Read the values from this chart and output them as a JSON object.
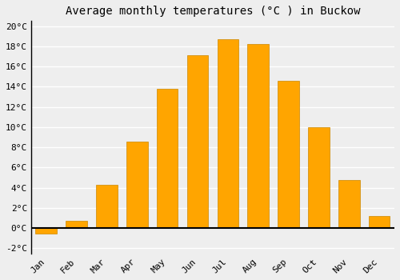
{
  "title": "Average monthly temperatures (°C ) in Buckow",
  "months": [
    "Jan",
    "Feb",
    "Mar",
    "Apr",
    "May",
    "Jun",
    "Jul",
    "Aug",
    "Sep",
    "Oct",
    "Nov",
    "Dec"
  ],
  "values": [
    -0.5,
    0.7,
    4.3,
    8.6,
    13.8,
    17.1,
    18.7,
    18.2,
    14.6,
    10.0,
    4.8,
    1.2
  ],
  "bar_color": "#FFA500",
  "bar_edge_color": "#CC8800",
  "ylim": [
    -2.5,
    20.5
  ],
  "yticks": [
    -2,
    0,
    2,
    4,
    6,
    8,
    10,
    12,
    14,
    16,
    18,
    20
  ],
  "ytick_labels": [
    "-2°C",
    "0°C",
    "2°C",
    "4°C",
    "6°C",
    "8°C",
    "10°C",
    "12°C",
    "14°C",
    "16°C",
    "18°C",
    "20°C"
  ],
  "background_color": "#eeeeee",
  "plot_bg_color": "#eeeeee",
  "grid_color": "#ffffff",
  "title_fontsize": 10,
  "tick_fontsize": 8,
  "font_family": "monospace",
  "bar_width": 0.7
}
